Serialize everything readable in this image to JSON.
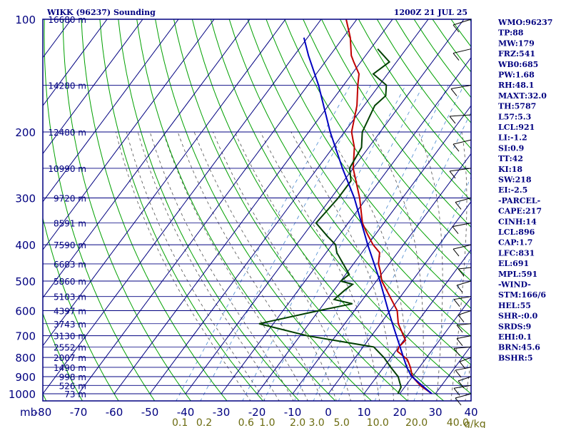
{
  "title_left": "WIKK (96237) Sounding",
  "title_right": "1200Z 21 JUL 25",
  "units_label": "mb",
  "mixing_unit": "g/kg",
  "colors": {
    "frame": "#000080",
    "temperature": "#c00000",
    "dewpoint": "#004000",
    "parcel": "#0000c0",
    "dry_adiabat": "#00a000",
    "moist_adiabat": "#505050",
    "mixing_ratio": "#4a8ad0"
  },
  "chart_data": {
    "type": "line",
    "title": "WIKK (96237) Sounding",
    "y_scale": "log-pressure",
    "ylim": [
      1000,
      100
    ],
    "xlim": [
      -80,
      40
    ],
    "x_skewed": true,
    "pressure_ticks": [
      "100",
      "200",
      "300",
      "400",
      "500",
      "600",
      "700",
      "800",
      "900",
      "1000"
    ],
    "pressure_tick_values": [
      100,
      200,
      300,
      400,
      500,
      600,
      700,
      800,
      900,
      1000
    ],
    "temperature_ticks": [
      "-80",
      "-70",
      "-60",
      "-50",
      "-40",
      "-30",
      "-20",
      "-10",
      "0",
      "10",
      "20",
      "30",
      "40"
    ],
    "temperature_tick_values": [
      -80,
      -70,
      -60,
      -50,
      -40,
      -30,
      -20,
      -10,
      0,
      10,
      20,
      30,
      40
    ],
    "mixing_ratio_labels": [
      "0.1",
      "0.2",
      "0.6",
      "1.0",
      "2.0",
      "3.0",
      "5.0",
      "10.0",
      "20.0",
      "40.0"
    ],
    "height_levels": [
      {
        "p": 100,
        "label": "16680 m"
      },
      {
        "p": 150,
        "label": "14280 m"
      },
      {
        "p": 200,
        "label": "12480 m"
      },
      {
        "p": 250,
        "label": "10990 m"
      },
      {
        "p": 300,
        "label": "9720 m"
      },
      {
        "p": 350,
        "label": "8591 m"
      },
      {
        "p": 400,
        "label": "7590 m"
      },
      {
        "p": 450,
        "label": "6683 m"
      },
      {
        "p": 500,
        "label": "5860 m"
      },
      {
        "p": 550,
        "label": "5103 m"
      },
      {
        "p": 600,
        "label": "4397 m"
      },
      {
        "p": 650,
        "label": "3743 m"
      },
      {
        "p": 700,
        "label": "3130 m"
      },
      {
        "p": 750,
        "label": "2552 m"
      },
      {
        "p": 800,
        "label": "2007 m"
      },
      {
        "p": 850,
        "label": "1490 m"
      },
      {
        "p": 900,
        "label": "998 m"
      },
      {
        "p": 950,
        "label": "526 m"
      },
      {
        "p": 1000,
        "label": "73 m"
      }
    ],
    "series": [
      {
        "key": "temperature",
        "points": [
          [
            1000,
            29
          ],
          [
            950,
            24
          ],
          [
            925,
            22
          ],
          [
            900,
            20
          ],
          [
            850,
            17.5
          ],
          [
            810,
            15
          ],
          [
            770,
            10.5
          ],
          [
            750,
            10
          ],
          [
            720,
            10.5
          ],
          [
            700,
            9
          ],
          [
            650,
            5
          ],
          [
            600,
            2
          ],
          [
            550,
            -3
          ],
          [
            500,
            -8.5
          ],
          [
            470,
            -11
          ],
          [
            450,
            -13
          ],
          [
            420,
            -15
          ],
          [
            400,
            -18.5
          ],
          [
            380,
            -21.5
          ],
          [
            370,
            -23
          ],
          [
            350,
            -26
          ],
          [
            300,
            -32
          ],
          [
            250,
            -40
          ],
          [
            220,
            -44
          ],
          [
            200,
            -48
          ],
          [
            170,
            -52
          ],
          [
            150,
            -56
          ],
          [
            140,
            -58
          ],
          [
            130,
            -62
          ],
          [
            125,
            -64
          ],
          [
            112,
            -68
          ],
          [
            100,
            -73
          ]
        ]
      },
      {
        "key": "dewpoint",
        "points": [
          [
            1000,
            19.5
          ],
          [
            960,
            19
          ],
          [
            900,
            16
          ],
          [
            850,
            12
          ],
          [
            800,
            8
          ],
          [
            750,
            3
          ],
          [
            700,
            -18
          ],
          [
            650,
            -34
          ],
          [
            600,
            -20
          ],
          [
            575,
            -12
          ],
          [
            560,
            -18
          ],
          [
            530,
            -17
          ],
          [
            510,
            -16
          ],
          [
            500,
            -20
          ],
          [
            480,
            -19
          ],
          [
            420,
            -27
          ],
          [
            400,
            -29
          ],
          [
            380,
            -33
          ],
          [
            350,
            -39
          ],
          [
            300,
            -38
          ],
          [
            270,
            -38
          ],
          [
            250,
            -41
          ],
          [
            220,
            -42
          ],
          [
            200,
            -45
          ],
          [
            170,
            -47
          ],
          [
            160,
            -46
          ],
          [
            150,
            -48
          ],
          [
            140,
            -54
          ],
          [
            130,
            -52
          ],
          [
            120,
            -58
          ]
        ]
      },
      {
        "key": "parcel",
        "points": [
          [
            1000,
            29
          ],
          [
            950,
            24.5
          ],
          [
            896,
            19.5
          ],
          [
            850,
            16.5
          ],
          [
            800,
            13.5
          ],
          [
            700,
            7
          ],
          [
            600,
            -0.5
          ],
          [
            500,
            -9
          ],
          [
            400,
            -20
          ],
          [
            300,
            -33.5
          ],
          [
            250,
            -43
          ],
          [
            200,
            -54
          ],
          [
            150,
            -67
          ],
          [
            125,
            -76
          ],
          [
            112,
            -81
          ]
        ]
      }
    ]
  },
  "indices": [
    "WMO:96237",
    "TP:88",
    "MW:179",
    "FRZ:541",
    "WB0:685",
    "PW:1.68",
    "RH:48.1",
    "MAXT:32.0",
    "TH:5787",
    "L57:5.3",
    "LCL:921",
    "LI:-1.2",
    "SI:0.9",
    "TT:42",
    "KI:18",
    "SW:218",
    "EI:-2.5",
    "-PARCEL-",
    "CAPE:217",
    "CINH:14",
    "LCL:896",
    "CAP:1.7",
    "LFC:831",
    "EL:691",
    "MPL:591",
    "-WIND-",
    "STM:166/6",
    "HEL:55",
    "SHR-:0.0",
    "SRDS:9",
    "EHI:0.1",
    "BRN:45.6",
    "BSHR:5"
  ]
}
